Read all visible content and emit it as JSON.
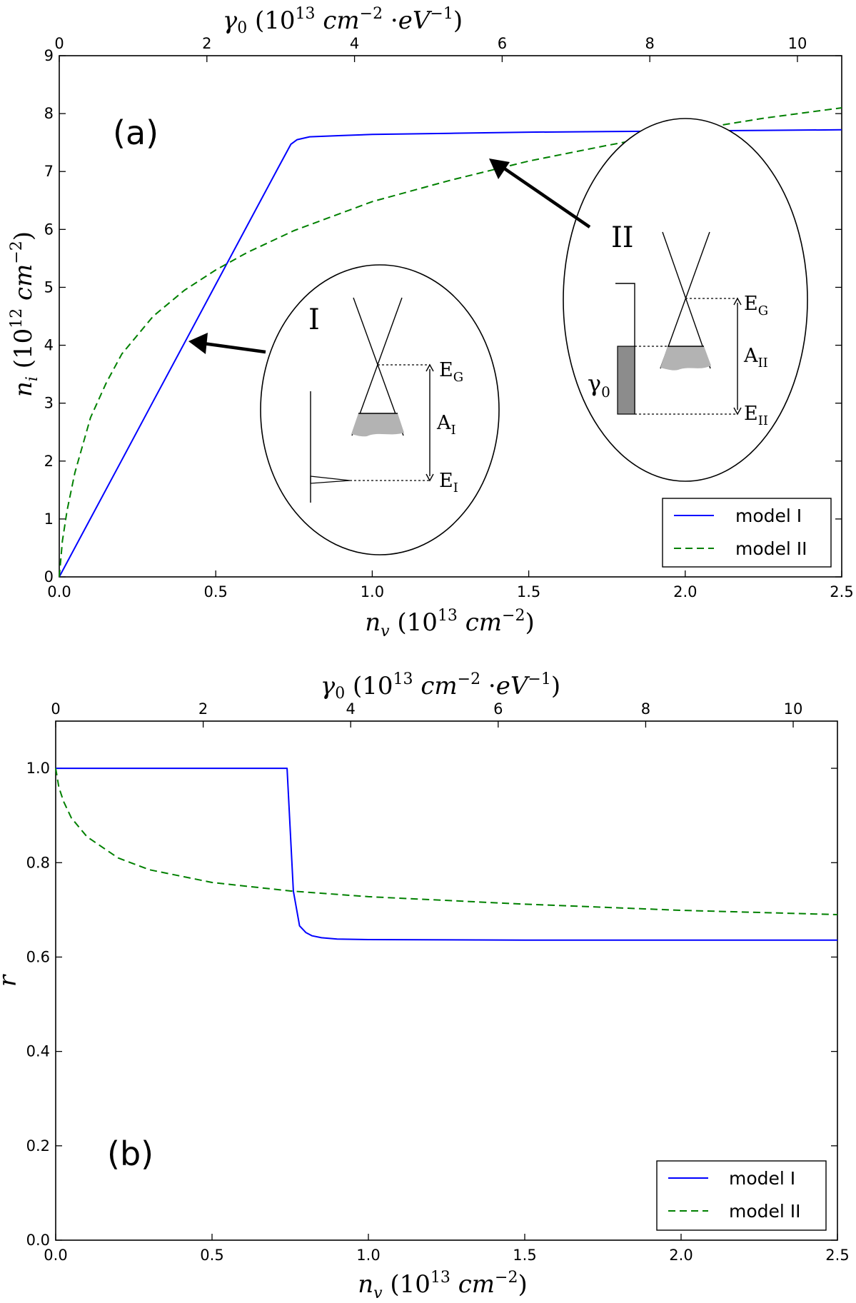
{
  "chart_data": [
    {
      "panel": "a",
      "type": "line",
      "panel_label": "(a)",
      "xlabel": "n_v (10^13 cm^-2)",
      "ylabel": "n_i (10^12 cm^-2)",
      "top_xlabel": "γ0 (10^13 cm^-2 ·eV^-1)",
      "xlim": [
        0,
        2.5
      ],
      "ylim": [
        0,
        9
      ],
      "top_xlim": [
        0,
        10.6
      ],
      "xticks": [
        0.0,
        0.5,
        1.0,
        1.5,
        2.0,
        2.5
      ],
      "xtick_labels": [
        "0.0",
        "0.5",
        "1.0",
        "1.5",
        "2.0",
        "2.5"
      ],
      "yticks": [
        0,
        1,
        2,
        3,
        4,
        5,
        6,
        7,
        8,
        9
      ],
      "ytick_labels": [
        "0",
        "1",
        "2",
        "3",
        "4",
        "5",
        "6",
        "7",
        "8",
        "9"
      ],
      "top_xticks": [
        0,
        2,
        4,
        6,
        8,
        10
      ],
      "top_xtick_labels": [
        "0",
        "2",
        "4",
        "6",
        "8",
        "10"
      ],
      "legend_position": "lower-right",
      "series": [
        {
          "name": "model I",
          "style": "solid",
          "color": "#0000ff",
          "x": [
            0,
            0.1,
            0.2,
            0.3,
            0.4,
            0.5,
            0.6,
            0.7,
            0.74,
            0.76,
            0.8,
            0.9,
            1.0,
            1.25,
            1.5,
            1.75,
            2.0,
            2.25,
            2.5
          ],
          "y": [
            0,
            1.01,
            2.02,
            3.03,
            4.04,
            5.05,
            6.06,
            7.07,
            7.47,
            7.55,
            7.6,
            7.62,
            7.64,
            7.66,
            7.68,
            7.69,
            7.7,
            7.71,
            7.72
          ]
        },
        {
          "name": "model II",
          "style": "dashed",
          "color": "#008000",
          "x": [
            0,
            0.01,
            0.025,
            0.05,
            0.1,
            0.15,
            0.2,
            0.3,
            0.4,
            0.5,
            0.6,
            0.75,
            1.0,
            1.25,
            1.5,
            1.75,
            2.0,
            2.25,
            2.5
          ],
          "y": [
            0,
            0.62,
            1.15,
            1.8,
            2.75,
            3.35,
            3.85,
            4.5,
            4.95,
            5.3,
            5.6,
            5.98,
            6.48,
            6.85,
            7.18,
            7.45,
            7.7,
            7.92,
            8.1
          ]
        }
      ],
      "inset_I": {
        "roman": "I",
        "level_top": "E",
        "level_top_sub": "G",
        "gap": "A",
        "gap_sub": "I",
        "level_bottom": "E",
        "level_bottom_sub": "I"
      },
      "inset_II": {
        "roman": "II",
        "level_top": "E",
        "level_top_sub": "G",
        "gap": "A",
        "gap_sub": "II",
        "level_bottom": "E",
        "level_bottom_sub": "II",
        "dos": "γ",
        "dos_sub": "0"
      }
    },
    {
      "panel": "b",
      "type": "line",
      "panel_label": "(b)",
      "xlabel": "n_v (10^13 cm^-2)",
      "ylabel": "r",
      "top_xlabel": "γ0 (10^13 cm^-2 ·eV^-1)",
      "xlim": [
        0,
        2.5
      ],
      "ylim": [
        0,
        1.1
      ],
      "top_xlim": [
        0,
        10.6
      ],
      "xticks": [
        0.0,
        0.5,
        1.0,
        1.5,
        2.0,
        2.5
      ],
      "xtick_labels": [
        "0.0",
        "0.5",
        "1.0",
        "1.5",
        "2.0",
        "2.5"
      ],
      "yticks": [
        0.0,
        0.2,
        0.4,
        0.6,
        0.8,
        1.0
      ],
      "ytick_labels": [
        "0.0",
        "0.2",
        "0.4",
        "0.6",
        "0.8",
        "1.0"
      ],
      "top_xticks": [
        0,
        2,
        4,
        6,
        8,
        10
      ],
      "top_xtick_labels": [
        "0",
        "2",
        "4",
        "6",
        "8",
        "10"
      ],
      "legend_position": "lower-right",
      "series": [
        {
          "name": "model I",
          "style": "solid",
          "color": "#0000ff",
          "x": [
            0,
            0.5,
            0.74,
            0.76,
            0.78,
            0.8,
            0.82,
            0.85,
            0.9,
            1.0,
            1.5,
            2.0,
            2.5
          ],
          "y": [
            1.0,
            1.0,
            1.0,
            0.74,
            0.666,
            0.652,
            0.645,
            0.641,
            0.638,
            0.637,
            0.636,
            0.636,
            0.636
          ]
        },
        {
          "name": "model II",
          "style": "dashed",
          "color": "#008000",
          "x": [
            0,
            0.01,
            0.025,
            0.05,
            0.1,
            0.2,
            0.3,
            0.5,
            0.75,
            1.0,
            1.5,
            2.0,
            2.5
          ],
          "y": [
            1.0,
            0.96,
            0.93,
            0.895,
            0.855,
            0.81,
            0.785,
            0.758,
            0.74,
            0.728,
            0.712,
            0.699,
            0.69
          ]
        }
      ]
    }
  ]
}
